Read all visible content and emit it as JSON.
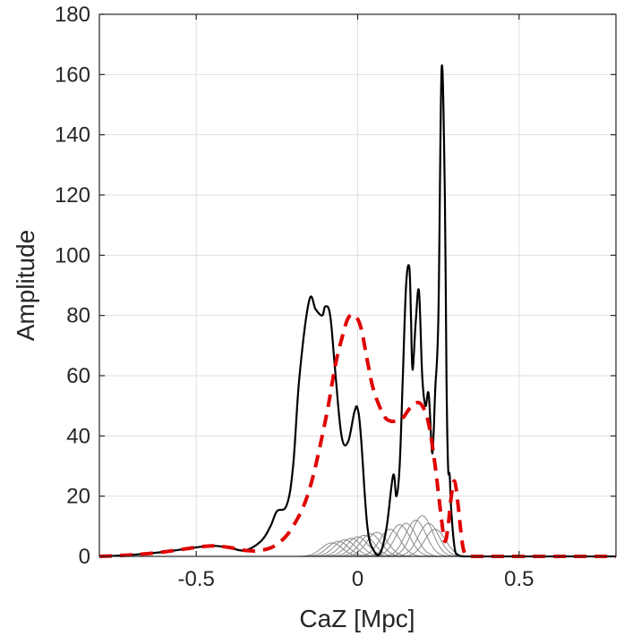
{
  "chart_data": {
    "type": "line",
    "title": "",
    "xlabel": "CaZ [Mpc]",
    "ylabel": "Amplitude",
    "xlim": [
      -0.8,
      0.8
    ],
    "ylim": [
      0,
      180
    ],
    "grid": true,
    "x_ticks": [
      {
        "value": -0.5,
        "label": "-0.5"
      },
      {
        "value": 0,
        "label": "0"
      },
      {
        "value": 0.5,
        "label": "0.5"
      }
    ],
    "y_ticks": [
      {
        "value": 0,
        "label": "0"
      },
      {
        "value": 20,
        "label": "20"
      },
      {
        "value": 40,
        "label": "40"
      },
      {
        "value": 60,
        "label": "60"
      },
      {
        "value": 80,
        "label": "80"
      },
      {
        "value": 100,
        "label": "100"
      },
      {
        "value": 120,
        "label": "120"
      },
      {
        "value": 140,
        "label": "140"
      },
      {
        "value": 160,
        "label": "160"
      },
      {
        "value": 180,
        "label": "180"
      }
    ],
    "series": [
      {
        "style": "solid",
        "color": "#000000",
        "x": [
          -0.8,
          -0.7,
          -0.6,
          -0.5,
          -0.45,
          -0.4,
          -0.35,
          -0.3,
          -0.27,
          -0.25,
          -0.22,
          -0.2,
          -0.18,
          -0.15,
          -0.13,
          -0.11,
          -0.1,
          -0.085,
          -0.07,
          -0.05,
          -0.03,
          -0.01,
          0,
          0.01,
          0.03,
          0.05,
          0.07,
          0.09,
          0.11,
          0.12,
          0.13,
          0.14,
          0.15,
          0.16,
          0.165,
          0.17,
          0.18,
          0.19,
          0.2,
          0.21,
          0.22,
          0.23,
          0.235,
          0.24,
          0.25,
          0.26,
          0.27,
          0.275,
          0.28,
          0.285,
          0.29,
          0.3,
          0.31,
          0.33,
          0.4,
          0.5,
          0.6,
          0.7,
          0.8
        ],
        "y": [
          0,
          0.5,
          1.5,
          3,
          3.5,
          3,
          2,
          5,
          10,
          15,
          17,
          30,
          60,
          85,
          82,
          80,
          83,
          80,
          62,
          40,
          38,
          48,
          49,
          40,
          10,
          2,
          1,
          10,
          27,
          20,
          30,
          60,
          90,
          96,
          80,
          62,
          78,
          88,
          60,
          50,
          54,
          35,
          40,
          55,
          80,
          162,
          120,
          60,
          30,
          27,
          15,
          3,
          0.5,
          0,
          0,
          0,
          0,
          0,
          0
        ]
      },
      {
        "style": "dashed",
        "color": "#e00000",
        "x": [
          -0.8,
          -0.7,
          -0.6,
          -0.5,
          -0.45,
          -0.4,
          -0.35,
          -0.3,
          -0.25,
          -0.2,
          -0.15,
          -0.1,
          -0.07,
          -0.05,
          -0.03,
          -0.01,
          0.01,
          0.03,
          0.05,
          0.08,
          0.1,
          0.12,
          0.14,
          0.16,
          0.18,
          0.2,
          0.22,
          0.24,
          0.26,
          0.27,
          0.28,
          0.29,
          0.3,
          0.31,
          0.32,
          0.33,
          0.35,
          0.4,
          0.5,
          0.6,
          0.7,
          0.8
        ],
        "y": [
          0,
          0.5,
          1.5,
          3,
          3.5,
          3,
          2,
          2,
          4,
          10,
          22,
          45,
          63,
          72,
          79,
          80,
          76,
          65,
          55,
          47,
          45,
          45,
          46,
          49,
          51,
          50,
          44,
          30,
          12,
          5,
          10,
          20,
          25,
          18,
          8,
          1.5,
          0,
          0,
          0,
          0,
          0,
          0
        ]
      }
    ],
    "background_series": {
      "color": "#8a8a8a",
      "description_count": 15,
      "peaks": [
        {
          "center": -0.08,
          "amplitude": 4.5
        },
        {
          "center": -0.06,
          "amplitude": 5
        },
        {
          "center": -0.04,
          "amplitude": 5.5
        },
        {
          "center": -0.02,
          "amplitude": 6
        },
        {
          "center": 0.0,
          "amplitude": 6.5
        },
        {
          "center": 0.02,
          "amplitude": 7
        },
        {
          "center": 0.04,
          "amplitude": 7.5
        },
        {
          "center": 0.06,
          "amplitude": 8
        },
        {
          "center": 0.1,
          "amplitude": 9
        },
        {
          "center": 0.13,
          "amplitude": 10.5
        },
        {
          "center": 0.15,
          "amplitude": 11
        },
        {
          "center": 0.18,
          "amplitude": 12
        },
        {
          "center": 0.2,
          "amplitude": 13.5
        },
        {
          "center": 0.22,
          "amplitude": 11
        },
        {
          "center": 0.24,
          "amplitude": 9
        }
      ]
    }
  }
}
